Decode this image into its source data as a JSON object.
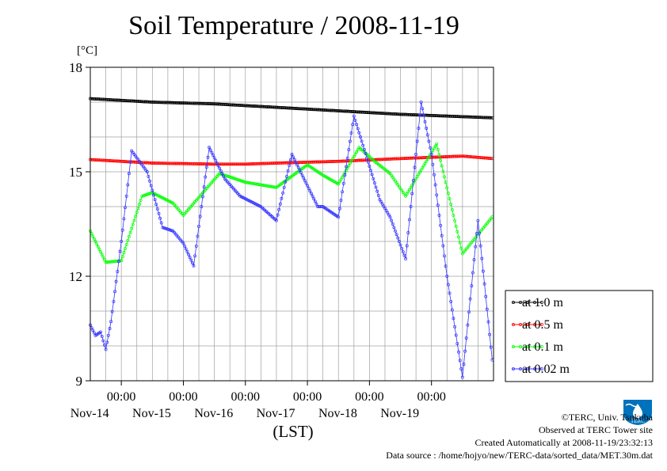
{
  "chart_data": {
    "type": "line",
    "title": "Soil Temperature / 2008-11-19",
    "ylabel": "[°C]",
    "xlabel": "(LST)",
    "ylim": [
      9,
      18
    ],
    "yticks": [
      9,
      12,
      15,
      18
    ],
    "xlim": [
      "2008-11-13T12:00",
      "2008-11-19T24:00"
    ],
    "xticks": [
      {
        "time": "00:00",
        "date": "Nov-14",
        "at": "2008-11-14T00:00"
      },
      {
        "time": "00:00",
        "date": "Nov-15",
        "at": "2008-11-15T00:00"
      },
      {
        "time": "00:00",
        "date": "Nov-16",
        "at": "2008-11-16T00:00"
      },
      {
        "time": "00:00",
        "date": "Nov-17",
        "at": "2008-11-17T00:00"
      },
      {
        "time": "00:00",
        "date": "Nov-18",
        "at": "2008-11-18T00:00"
      },
      {
        "time": "00:00",
        "date": "Nov-19",
        "at": "2008-11-19T00:00"
      }
    ],
    "grid": true,
    "legend_position": "right",
    "series": [
      {
        "name": "at 1.0 m",
        "color": "#000000",
        "x": [
          "2008-11-13T12:00",
          "2008-11-14T12:00",
          "2008-11-15T12:00",
          "2008-11-16T12:00",
          "2008-11-17T12:00",
          "2008-11-18T12:00",
          "2008-11-19T23:30"
        ],
        "y": [
          17.1,
          17.0,
          16.95,
          16.85,
          16.75,
          16.65,
          16.55
        ]
      },
      {
        "name": "at 0.5 m",
        "color": "#ff0000",
        "x": [
          "2008-11-13T12:00",
          "2008-11-14T12:00",
          "2008-11-15T12:00",
          "2008-11-16T00:00",
          "2008-11-16T12:00",
          "2008-11-17T12:00",
          "2008-11-18T12:00",
          "2008-11-19T12:00",
          "2008-11-19T23:30"
        ],
        "y": [
          15.35,
          15.25,
          15.22,
          15.22,
          15.25,
          15.3,
          15.38,
          15.45,
          15.38
        ]
      },
      {
        "name": "at 0.1 m",
        "color": "#00ff00",
        "x": [
          "2008-11-13T12:00",
          "2008-11-13T18:00",
          "2008-11-14T00:00",
          "2008-11-14T08:00",
          "2008-11-14T12:00",
          "2008-11-14T20:00",
          "2008-11-15T00:00",
          "2008-11-15T14:00",
          "2008-11-15T20:00",
          "2008-11-16T00:00",
          "2008-11-16T12:00",
          "2008-11-17T00:00",
          "2008-11-17T06:00",
          "2008-11-17T12:00",
          "2008-11-17T20:00",
          "2008-11-18T02:00",
          "2008-11-18T08:00",
          "2008-11-18T14:00",
          "2008-11-19T02:00",
          "2008-11-19T12:00",
          "2008-11-19T23:30"
        ],
        "y": [
          13.3,
          12.4,
          12.45,
          14.3,
          14.4,
          14.1,
          13.75,
          14.95,
          14.8,
          14.7,
          14.55,
          15.2,
          14.9,
          14.65,
          15.7,
          15.3,
          14.95,
          14.3,
          15.8,
          12.65,
          13.7
        ]
      },
      {
        "name": "at 0.02 m",
        "color": "#3333ff",
        "x": [
          "2008-11-13T12:00",
          "2008-11-13T14:00",
          "2008-11-13T16:00",
          "2008-11-13T18:00",
          "2008-11-13T20:00",
          "2008-11-14T00:00",
          "2008-11-14T04:00",
          "2008-11-14T10:00",
          "2008-11-14T16:00",
          "2008-11-14T20:00",
          "2008-11-15T00:00",
          "2008-11-15T04:00",
          "2008-11-15T10:00",
          "2008-11-15T16:00",
          "2008-11-15T22:00",
          "2008-11-16T06:00",
          "2008-11-16T12:00",
          "2008-11-16T18:00",
          "2008-11-16T22:00",
          "2008-11-17T04:00",
          "2008-11-17T06:00",
          "2008-11-17T12:00",
          "2008-11-17T18:00",
          "2008-11-18T04:00",
          "2008-11-18T08:00",
          "2008-11-18T14:00",
          "2008-11-18T20:00",
          "2008-11-19T00:00",
          "2008-11-19T06:00",
          "2008-11-19T12:00",
          "2008-11-19T18:00",
          "2008-11-19T23:30"
        ],
        "y": [
          10.6,
          10.3,
          10.4,
          9.9,
          10.7,
          13.0,
          15.6,
          15.0,
          13.4,
          13.3,
          12.95,
          12.3,
          15.7,
          14.8,
          14.3,
          14.0,
          13.6,
          15.5,
          14.9,
          14.0,
          14.0,
          13.7,
          16.6,
          14.2,
          13.7,
          12.5,
          17.0,
          15.5,
          12.0,
          9.1,
          13.6,
          9.6
        ]
      }
    ]
  },
  "footer": {
    "copyright": "©TERC, Univ. Tsukuba",
    "site": "Observed at TERC Tower site",
    "created": "Created Automatically at 2008-11-19/23:32:13",
    "source": "Data source : /home/hojyo/new/TERC-data/sorted_data/MET.30m.dat"
  },
  "logo": {
    "text": "TERC",
    "icon": "terc-logo-icon",
    "color": "#0072bc"
  }
}
